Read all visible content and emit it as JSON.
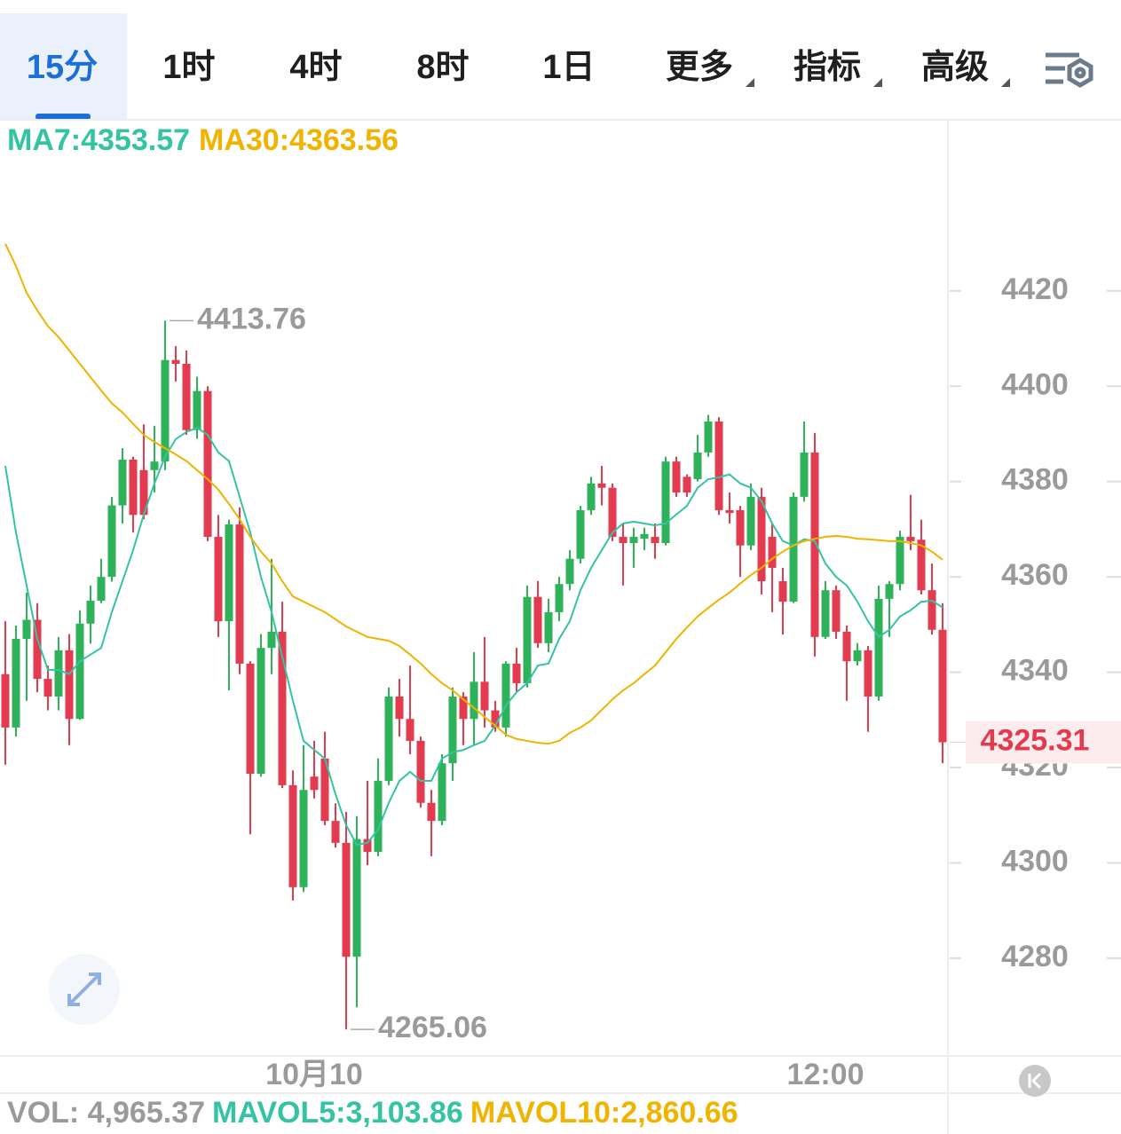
{
  "ui": {
    "tabs": [
      "15分",
      "1时",
      "4时",
      "8时",
      "1日",
      "更多",
      "指标",
      "高级"
    ],
    "active_tab": 0
  },
  "chart_data": {
    "type": "candlestick",
    "series": [
      {
        "name": "MA7:4353.57",
        "color": "#34c3a3",
        "values": [
          4383.3,
          4369.3,
          4358.2,
          4347.0,
          4340.5,
          4340.5,
          4339.6,
          4342.3,
          4343.7,
          4345.1,
          4352.6,
          4359.1,
          4365.6,
          4373.1,
          4379.6,
          4385.2,
          4388.9,
          4390.4,
          4391.3,
          4389.8,
          4386.1,
          4384.3,
          4376.8,
          4369.3,
          4360.0,
          4352.6,
          4343.3,
          4334.0,
          4325.6,
          4323.7,
          4321.9,
          4314.4,
          4307.9,
          4303.8,
          4304.2,
          4307.0,
          4312.6,
          4317.2,
          4319.1,
          4317.2,
          4317.2,
          4321.9,
          4323.2,
          4323.7,
          4324.7,
          4325.6,
          4328.8,
          4333.0,
          4335.8,
          4337.7,
          4341.4,
          4341.8,
          4347.0,
          4350.7,
          4357.2,
          4361.9,
          4365.6,
          4369.3,
          4371.2,
          4371.6,
          4371.2,
          4370.8,
          4371.2,
          4373.1,
          4374.9,
          4378.7,
          4380.5,
          4380.9,
          4381.5,
          4379.6,
          4378.7,
          4375.9,
          4371.2,
          4367.5,
          4366.6,
          4367.9,
          4367.5,
          4362.8,
          4360.0,
          4358.2,
          4354.8,
          4350.7,
          4347.4,
          4348.9,
          4351.7,
          4353.0,
          4354.8,
          4355.0,
          4353.6
        ]
      },
      {
        "name": "MA30:4363.56",
        "color": "#f0b400",
        "values": [
          4429.9,
          4425.2,
          4419.6,
          4415.9,
          4412.6,
          4410.3,
          4407.5,
          4404.7,
          4401.9,
          4399.1,
          4396.4,
          4394.5,
          4392.1,
          4389.8,
          4388.3,
          4387.0,
          4385.7,
          4384.3,
          4382.4,
          4380.5,
          4378.3,
          4375.3,
          4372.1,
          4368.4,
          4365.3,
          4362.8,
          4359.1,
          4355.9,
          4354.8,
          4353.7,
          4352.6,
          4351.1,
          4349.6,
          4348.5,
          4347.4,
          4347.0,
          4346.6,
          4345.5,
          4343.7,
          4341.8,
          4339.6,
          4337.7,
          4336.2,
          4334.3,
          4332.5,
          4330.6,
          4328.8,
          4326.9,
          4326.0,
          4325.6,
          4325.2,
          4325.0,
          4325.6,
          4327.3,
          4328.4,
          4329.9,
          4332.1,
          4334.3,
          4336.2,
          4337.7,
          4339.6,
          4341.4,
          4344.2,
          4347.0,
          4349.4,
          4351.7,
          4353.5,
          4355.2,
          4356.7,
          4358.6,
          4360.4,
          4361.9,
          4363.8,
          4365.3,
          4366.6,
          4367.5,
          4368.0,
          4368.4,
          4368.6,
          4368.4,
          4368.0,
          4367.9,
          4367.7,
          4367.5,
          4367.5,
          4367.1,
          4366.6,
          4365.3,
          4363.6
        ]
      }
    ],
    "candles": [
      [
        4339.6,
        4350.7,
        4320.6,
        4328.4
      ],
      [
        4328.4,
        4349.8,
        4326.5,
        4347.0
      ],
      [
        4347.0,
        4356.7,
        4334.0,
        4351.0
      ],
      [
        4351.0,
        4354.5,
        4335.8,
        4338.6
      ],
      [
        4338.6,
        4341.4,
        4332.0,
        4334.9
      ],
      [
        4334.9,
        4347.4,
        4332.0,
        4344.6
      ],
      [
        4344.6,
        4348.0,
        4324.7,
        4330.2
      ],
      [
        4330.2,
        4353.0,
        4330.0,
        4350.2
      ],
      [
        4350.2,
        4358.2,
        4346.0,
        4355.0
      ],
      [
        4355.0,
        4363.8,
        4354.5,
        4360.0
      ],
      [
        4360.0,
        4376.8,
        4359.0,
        4375.0
      ],
      [
        4375.0,
        4387.0,
        4371.2,
        4384.6
      ],
      [
        4384.6,
        4385.2,
        4369.3,
        4373.0
      ],
      [
        4382.4,
        4392.0,
        4372.1,
        4373.0
      ],
      [
        4382.4,
        4391.7,
        4377.7,
        4384.2
      ],
      [
        4384.2,
        4413.76,
        4382.4,
        4405.5
      ],
      [
        4405.5,
        4408.4,
        4401.0,
        4404.7
      ],
      [
        4404.7,
        4407.5,
        4389.8,
        4390.8
      ],
      [
        4390.8,
        4402.0,
        4389.0,
        4399.0
      ],
      [
        4399.0,
        4400.0,
        4367.5,
        4368.4
      ],
      [
        4368.4,
        4373.0,
        4347.4,
        4350.7
      ],
      [
        4350.7,
        4372.0,
        4336.2,
        4371.0
      ],
      [
        4371.0,
        4374.6,
        4339.6,
        4341.8
      ],
      [
        4341.8,
        4342.3,
        4306.0,
        4318.7
      ],
      [
        4318.7,
        4348.0,
        4318.1,
        4345.1
      ],
      [
        4345.1,
        4363.8,
        4339.6,
        4348.5
      ],
      [
        4348.5,
        4354.8,
        4315.7,
        4316.3
      ],
      [
        4316.3,
        4319.4,
        4292.1,
        4294.9
      ],
      [
        4294.9,
        4324.7,
        4293.9,
        4315.3
      ],
      [
        4318.1,
        4325.6,
        4313.5,
        4315.3
      ],
      [
        4321.9,
        4327.5,
        4307.9,
        4308.8
      ],
      [
        4308.8,
        4312.5,
        4303.2,
        4304.2
      ],
      [
        4304.2,
        4310.7,
        4265.06,
        4280.3
      ],
      [
        4280.3,
        4309.8,
        4269.7,
        4305.0
      ],
      [
        4305.0,
        4317.2,
        4299.5,
        4302.3
      ],
      [
        4302.3,
        4321.9,
        4301.4,
        4317.2
      ],
      [
        4317.2,
        4336.8,
        4316.3,
        4334.9
      ],
      [
        4334.9,
        4338.6,
        4326.5,
        4330.2
      ],
      [
        4330.2,
        4341.4,
        4322.8,
        4325.6
      ],
      [
        4325.6,
        4326.5,
        4311.6,
        4312.6
      ],
      [
        4312.6,
        4315.3,
        4301.4,
        4308.8
      ],
      [
        4308.8,
        4322.8,
        4307.9,
        4320.9
      ],
      [
        4320.9,
        4336.8,
        4317.2,
        4334.9
      ],
      [
        4334.9,
        4335.8,
        4324.7,
        4330.2
      ],
      [
        4330.2,
        4344.2,
        4324.7,
        4338.0
      ],
      [
        4338.0,
        4347.4,
        4328.4,
        4332.0
      ],
      [
        4332.0,
        4334.0,
        4327.5,
        4328.4
      ],
      [
        4328.4,
        4342.3,
        4326.5,
        4341.8
      ],
      [
        4341.8,
        4345.1,
        4335.8,
        4337.7
      ],
      [
        4337.7,
        4358.2,
        4336.8,
        4355.8
      ],
      [
        4355.8,
        4359.1,
        4345.1,
        4346.1
      ],
      [
        4346.1,
        4355.4,
        4344.2,
        4352.6
      ],
      [
        4352.6,
        4360.0,
        4350.7,
        4358.5
      ],
      [
        4358.5,
        4365.6,
        4357.2,
        4363.8
      ],
      [
        4363.8,
        4374.9,
        4362.8,
        4374.0
      ],
      [
        4374.0,
        4381.0,
        4373.0,
        4379.6
      ],
      [
        4379.6,
        4383.3,
        4375.0,
        4378.7
      ],
      [
        4378.7,
        4379.6,
        4367.5,
        4368.4
      ],
      [
        4368.4,
        4371.2,
        4358.2,
        4367.1
      ],
      [
        4367.1,
        4370.3,
        4361.9,
        4368.4
      ],
      [
        4368.0,
        4370.3,
        4365.6,
        4369.0
      ],
      [
        4368.4,
        4371.2,
        4363.8,
        4367.1
      ],
      [
        4367.1,
        4385.2,
        4366.6,
        4384.2
      ],
      [
        4384.2,
        4385.2,
        4376.8,
        4377.7
      ],
      [
        4381.0,
        4381.5,
        4376.8,
        4377.7
      ],
      [
        4380.5,
        4389.8,
        4380.0,
        4386.1
      ],
      [
        4386.1,
        4394.0,
        4385.2,
        4392.6
      ],
      [
        4392.6,
        4393.5,
        4373.0,
        4374.0
      ],
      [
        4374.0,
        4377.7,
        4371.2,
        4373.4
      ],
      [
        4374.0,
        4374.9,
        4360.0,
        4366.6
      ],
      [
        4366.6,
        4379.6,
        4365.6,
        4376.8
      ],
      [
        4376.8,
        4378.7,
        4356.3,
        4359.1
      ],
      [
        4368.4,
        4371.2,
        4352.6,
        4361.9
      ],
      [
        4359.1,
        4361.9,
        4347.9,
        4354.8
      ],
      [
        4354.8,
        4377.7,
        4354.5,
        4376.8
      ],
      [
        4376.8,
        4392.6,
        4375.8,
        4386.1
      ],
      [
        4386.1,
        4390.2,
        4343.3,
        4347.4
      ],
      [
        4347.4,
        4359.1,
        4347.0,
        4357.2
      ],
      [
        4357.2,
        4358.2,
        4347.0,
        4348.5
      ],
      [
        4348.5,
        4349.8,
        4334.0,
        4342.3
      ],
      [
        4342.3,
        4346.1,
        4341.4,
        4344.6
      ],
      [
        4344.6,
        4345.5,
        4327.5,
        4334.9
      ],
      [
        4334.9,
        4358.2,
        4334.0,
        4355.4
      ],
      [
        4355.4,
        4359.1,
        4347.4,
        4358.5
      ],
      [
        4358.5,
        4369.7,
        4357.2,
        4368.4
      ],
      [
        4368.4,
        4377.2,
        4365.6,
        4367.5
      ],
      [
        4367.8,
        4372.0,
        4356.3,
        4357.2
      ],
      [
        4357.2,
        4362.8,
        4347.9,
        4348.9
      ],
      [
        4348.9,
        4354.5,
        4320.9,
        4325.31
      ]
    ],
    "up_color": "#2fb35a",
    "down_color": "#e23a4e",
    "categories": [
      null,
      null,
      null,
      null,
      null,
      null,
      null,
      null,
      null,
      null,
      null,
      null,
      null,
      null,
      null,
      null,
      null,
      null,
      null,
      null,
      null,
      null,
      null,
      null,
      null,
      null,
      null,
      null,
      null,
      "10月10",
      null,
      null,
      null,
      null,
      null,
      null,
      null,
      null,
      null,
      null,
      null,
      null,
      null,
      null,
      null,
      null,
      null,
      null,
      null,
      null,
      null,
      null,
      null,
      null,
      null,
      null,
      null,
      null,
      null,
      null,
      null,
      null,
      null,
      null,
      null,
      null,
      null,
      null,
      null,
      null,
      null,
      null,
      null,
      null,
      null,
      null,
      null,
      "12:00",
      null,
      null,
      null,
      null,
      null,
      null,
      null,
      null,
      null,
      null,
      null
    ],
    "ylim": [
      4259.5,
      4455.9
    ],
    "yticks": [
      4280,
      4300,
      4320,
      4340,
      4360,
      4380,
      4400,
      4420
    ],
    "high_label": 4413.76,
    "low_label": 4265.06,
    "last_price": 4325.31,
    "volume_legend": [
      {
        "text": "VOL: 4,965.37",
        "color": "#9a9a9a"
      },
      {
        "text": "MAVOL5:3,103.86",
        "color": "#34c3a3"
      },
      {
        "text": "MAVOL10:2,860.66",
        "color": "#f0b400"
      }
    ]
  }
}
